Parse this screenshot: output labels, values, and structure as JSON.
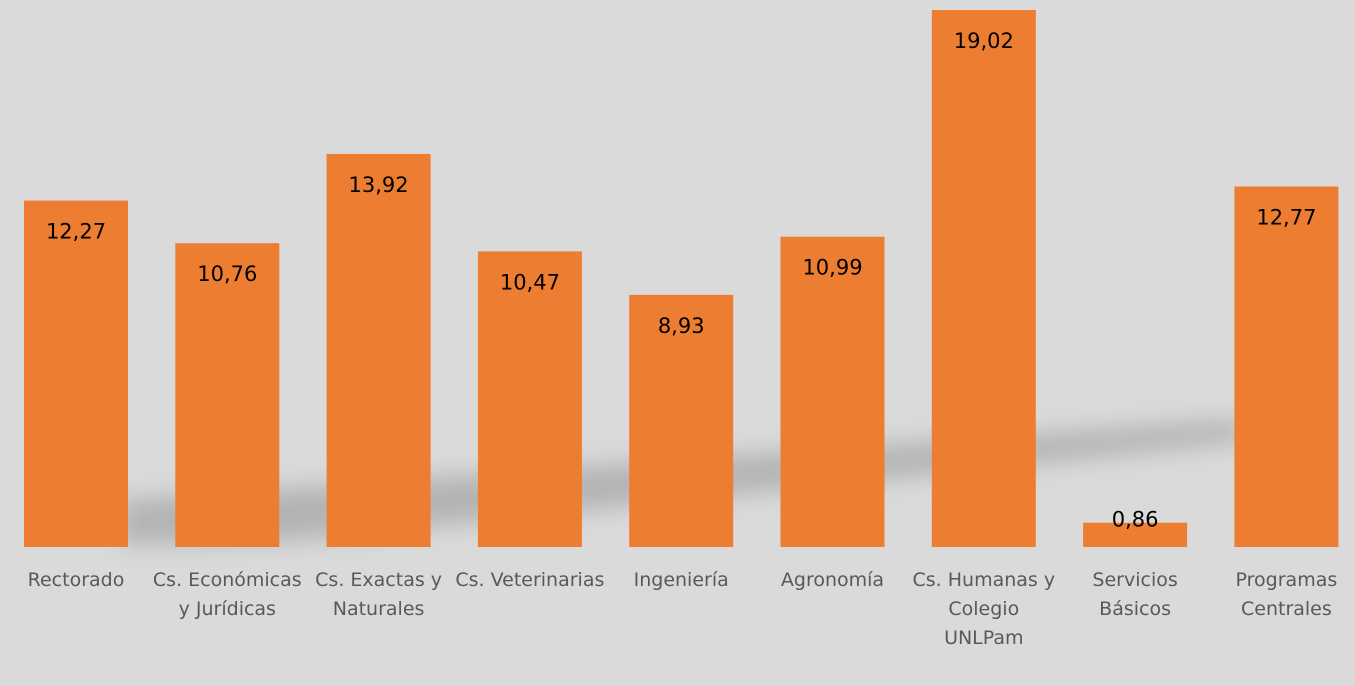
{
  "chart_data": {
    "type": "bar",
    "categories": [
      "Rectorado",
      "Cs. Económicas y Jurídicas",
      "Cs. Exactas y Naturales",
      "Cs. Veterinarias",
      "Ingeniería",
      "Agronomía",
      "Cs. Humanas y Colegio UNLPam",
      "Servicios Básicos",
      "Programas Centrales"
    ],
    "values": [
      12.27,
      10.76,
      13.92,
      10.47,
      8.93,
      10.99,
      19.02,
      0.86,
      12.77
    ],
    "value_labels": [
      "12,27",
      "10,76",
      "13,92",
      "10,47",
      "8,93",
      "10,99",
      "19,02",
      "0,86",
      "12,77"
    ],
    "color": "#ed7d31"
  }
}
